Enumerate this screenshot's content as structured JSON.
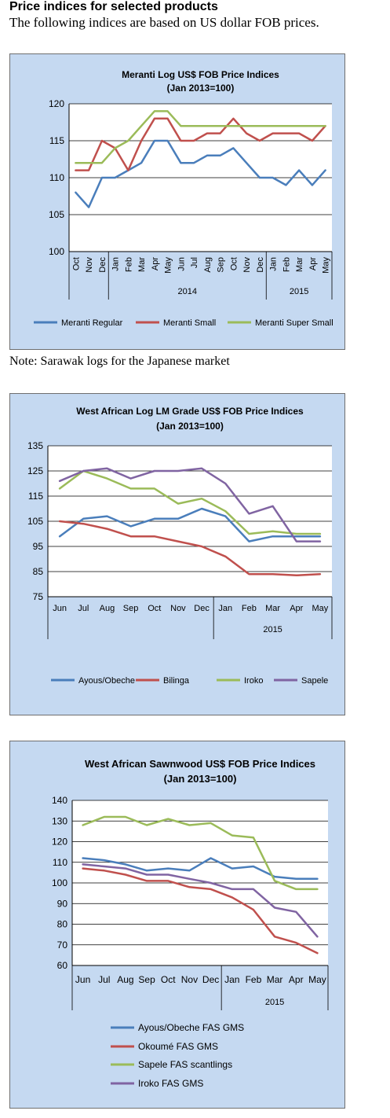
{
  "header": {
    "title": "Price indices for selected products",
    "subtitle": "The following indices are based on US dollar FOB prices."
  },
  "note": "Note: Sarawak logs for the Japanese market",
  "chart_data": [
    {
      "type": "line",
      "title": "Meranti Log US$ FOB Price Indices",
      "subtitle": "(Jan 2013=100)",
      "categories": [
        "Oct",
        "Nov",
        "Dec",
        "Jan",
        "Feb",
        "Mar",
        "Apr",
        "May",
        "Jun",
        "Jul",
        "Aug",
        "Sep",
        "Oct",
        "Nov",
        "Dec",
        "Jan",
        "Feb",
        "Mar",
        "Apr",
        "May"
      ],
      "year_groups": [
        {
          "label": "",
          "start": 0,
          "end": 2
        },
        {
          "label": "2014",
          "start": 3,
          "end": 14
        },
        {
          "label": "2015",
          "start": 15,
          "end": 19
        }
      ],
      "category_label_orientation": "vertical",
      "ylim": [
        100,
        120
      ],
      "yticks": [
        100,
        105,
        110,
        115,
        120
      ],
      "grid": true,
      "legend_position": "bottom",
      "series": [
        {
          "name": "Meranti Regular",
          "color": "#4a7ebb",
          "values": [
            108,
            106,
            110,
            110,
            111,
            112,
            115,
            115,
            112,
            112,
            113,
            113,
            114,
            112,
            110,
            110,
            109,
            111,
            109,
            111
          ]
        },
        {
          "name": "Meranti Small",
          "color": "#c0504d",
          "values": [
            111,
            111,
            115,
            114,
            111,
            115,
            118,
            118,
            115,
            115,
            116,
            116,
            118,
            116,
            115,
            116,
            116,
            116,
            115,
            117
          ]
        },
        {
          "name": "Meranti Super Small",
          "color": "#9bbb59",
          "values": [
            112,
            112,
            112,
            114,
            115,
            117,
            119,
            119,
            117,
            117,
            117,
            117,
            117,
            117,
            117,
            117,
            117,
            117,
            117,
            117
          ]
        }
      ]
    },
    {
      "type": "line",
      "title": "West African Log LM Grade US$ FOB Price Indices",
      "subtitle": "(Jan 2013=100)",
      "categories": [
        "Jun",
        "Jul",
        "Aug",
        "Sep",
        "Oct",
        "Nov",
        "Dec",
        "Jan",
        "Feb",
        "Mar",
        "Apr",
        "May"
      ],
      "year_groups": [
        {
          "label": "",
          "start": 0,
          "end": 6
        },
        {
          "label": "2015",
          "start": 7,
          "end": 11
        }
      ],
      "category_label_orientation": "horizontal",
      "ylim": [
        75,
        135
      ],
      "yticks": [
        75,
        85,
        95,
        105,
        115,
        125,
        135
      ],
      "grid": true,
      "legend_position": "bottom",
      "series": [
        {
          "name": "Ayous/Obeche",
          "color": "#4a7ebb",
          "values": [
            99,
            106,
            107,
            103,
            106,
            106,
            110,
            107,
            97,
            99,
            99,
            99
          ]
        },
        {
          "name": "Bilinga",
          "color": "#c0504d",
          "values": [
            105,
            104,
            102,
            99,
            99,
            97,
            95,
            91,
            84,
            84,
            83.5,
            84
          ]
        },
        {
          "name": "Iroko",
          "color": "#9bbb59",
          "values": [
            118,
            125,
            122,
            118,
            118,
            112,
            114,
            109,
            100,
            101,
            100,
            100
          ]
        },
        {
          "name": "Sapele",
          "color": "#8064a2",
          "values": [
            121,
            125,
            126,
            122,
            125,
            125,
            126,
            120,
            108,
            111,
            97,
            97
          ]
        }
      ]
    },
    {
      "type": "line",
      "title": "West African Sawnwood US$ FOB Price Indices",
      "subtitle": "(Jan 2013=100)",
      "categories": [
        "Jun",
        "Jul",
        "Aug",
        "Sep",
        "Oct",
        "Nov",
        "Dec",
        "Jan",
        "Feb",
        "Mar",
        "Apr",
        "May"
      ],
      "year_groups": [
        {
          "label": "",
          "start": 0,
          "end": 6
        },
        {
          "label": "2015",
          "start": 7,
          "end": 11
        }
      ],
      "category_label_orientation": "horizontal",
      "ylim": [
        60,
        140
      ],
      "yticks": [
        60,
        70,
        80,
        90,
        100,
        110,
        120,
        130,
        140
      ],
      "grid": true,
      "legend_position": "bottom",
      "series": [
        {
          "name": "Ayous/Obeche  FAS GMS",
          "color": "#4a7ebb",
          "values": [
            112,
            111,
            109,
            106,
            107,
            106,
            112,
            107,
            108,
            103,
            102,
            102
          ]
        },
        {
          "name": "Okoumé  FAS GMS",
          "color": "#c0504d",
          "values": [
            107,
            106,
            104,
            101,
            101,
            98,
            97,
            93,
            87,
            74,
            71,
            66
          ]
        },
        {
          "name": "Sapele FAS scantlings",
          "color": "#9bbb59",
          "values": [
            128,
            132,
            132,
            128,
            131,
            128,
            129,
            123,
            122,
            101,
            97,
            97
          ]
        },
        {
          "name": "Iroko FAS GMS",
          "color": "#8064a2",
          "values": [
            109,
            108,
            107,
            104,
            104,
            102,
            100,
            97,
            97,
            88,
            86,
            74
          ]
        }
      ]
    }
  ]
}
